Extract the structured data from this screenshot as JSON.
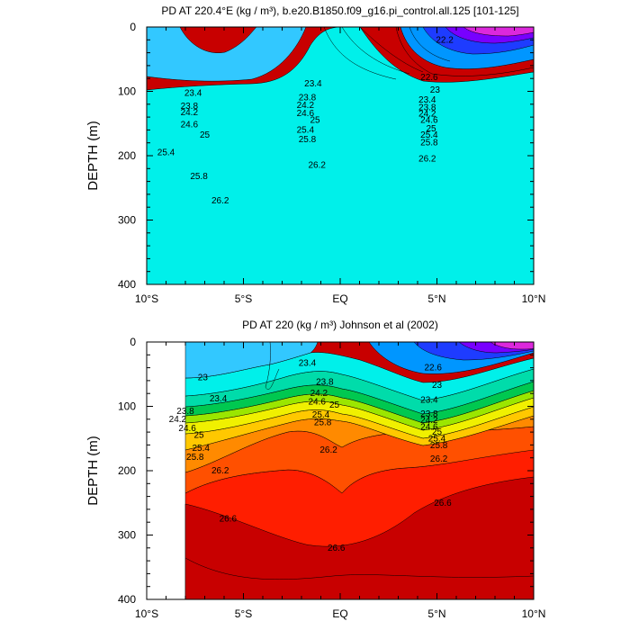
{
  "chart_data": [
    {
      "type": "heatmap",
      "title": "PD AT 220.4°E (kg / m³), b.e20.B1850.f09_g16.pi_control.all.125 [101-125]",
      "xlabel": "",
      "ylabel": "DEPTH (m)",
      "xlim": [
        -10,
        10
      ],
      "ylim": [
        400,
        0
      ],
      "x_ticks": [
        -10,
        -5,
        0,
        5,
        10
      ],
      "x_tick_labels": [
        "10°S",
        "5°S",
        "EQ",
        "5°N",
        "10°N"
      ],
      "y_ticks": [
        0,
        100,
        200,
        300,
        400
      ],
      "y_tick_labels": [
        "0",
        "100",
        "200",
        "300",
        "400"
      ],
      "x_data_range": [
        -10,
        10
      ],
      "contour_levels": [
        22.2,
        22.6,
        23,
        23.4,
        23.8,
        24.2,
        24.6,
        25,
        25.4,
        25.8,
        26.2
      ],
      "contour_labels": [
        {
          "text": "23.4",
          "x": -7.6,
          "y": 103
        },
        {
          "text": "23.8",
          "x": -7.8,
          "y": 123
        },
        {
          "text": "24.2",
          "x": -7.8,
          "y": 133
        },
        {
          "text": "24.6",
          "x": -7.8,
          "y": 152
        },
        {
          "text": "25",
          "x": -7.0,
          "y": 168
        },
        {
          "text": "25.4",
          "x": -9.0,
          "y": 195
        },
        {
          "text": "25.8",
          "x": -7.3,
          "y": 232
        },
        {
          "text": "26.2",
          "x": -6.2,
          "y": 270
        },
        {
          "text": "23.4",
          "x": -1.4,
          "y": 88
        },
        {
          "text": "23.8",
          "x": -1.7,
          "y": 110
        },
        {
          "text": "24.2",
          "x": -1.8,
          "y": 122
        },
        {
          "text": "24.6",
          "x": -1.8,
          "y": 134
        },
        {
          "text": "25",
          "x": -1.3,
          "y": 145
        },
        {
          "text": "25.4",
          "x": -1.8,
          "y": 160
        },
        {
          "text": "25.8",
          "x": -1.7,
          "y": 175
        },
        {
          "text": "26.2",
          "x": -1.2,
          "y": 215
        },
        {
          "text": "22.2",
          "x": 5.4,
          "y": 20
        },
        {
          "text": "22.6",
          "x": 4.6,
          "y": 78
        },
        {
          "text": "23",
          "x": 4.9,
          "y": 98
        },
        {
          "text": "23.4",
          "x": 4.5,
          "y": 113
        },
        {
          "text": "23.8",
          "x": 4.5,
          "y": 125
        },
        {
          "text": "24.2",
          "x": 4.5,
          "y": 135
        },
        {
          "text": "24.6",
          "x": 4.6,
          "y": 145
        },
        {
          "text": "25",
          "x": 4.7,
          "y": 158
        },
        {
          "text": "25.4",
          "x": 4.6,
          "y": 168
        },
        {
          "text": "25.8",
          "x": 4.6,
          "y": 180
        },
        {
          "text": "26.2",
          "x": 4.5,
          "y": 205
        }
      ]
    },
    {
      "type": "heatmap",
      "title": "PD AT 220 (kg / m³) Johnson et al (2002)",
      "xlabel": "",
      "ylabel": "DEPTH (m)",
      "xlim": [
        -10,
        10
      ],
      "ylim": [
        400,
        0
      ],
      "x_ticks": [
        -10,
        -5,
        0,
        5,
        10
      ],
      "x_tick_labels": [
        "10°S",
        "5°S",
        "EQ",
        "5°N",
        "10°N"
      ],
      "y_ticks": [
        0,
        100,
        200,
        300,
        400
      ],
      "y_tick_labels": [
        "0",
        "100",
        "200",
        "300",
        "400"
      ],
      "x_data_range": [
        -8,
        10
      ],
      "contour_levels": [
        22.2,
        22.6,
        23,
        23.4,
        23.8,
        24.2,
        24.6,
        25,
        25.4,
        25.8,
        26.2,
        26.6
      ],
      "contour_labels": [
        {
          "text": "23",
          "x": -7.1,
          "y": 55
        },
        {
          "text": "23.4",
          "x": -6.3,
          "y": 88
        },
        {
          "text": "23.8",
          "x": -8.0,
          "y": 108
        },
        {
          "text": "24.2",
          "x": -8.4,
          "y": 120
        },
        {
          "text": "24.6",
          "x": -7.9,
          "y": 134
        },
        {
          "text": "25",
          "x": -7.3,
          "y": 145
        },
        {
          "text": "25.4",
          "x": -7.2,
          "y": 165
        },
        {
          "text": "25.8",
          "x": -7.5,
          "y": 179
        },
        {
          "text": "26.2",
          "x": -6.2,
          "y": 200
        },
        {
          "text": "26.6",
          "x": -5.8,
          "y": 275
        },
        {
          "text": "23.4",
          "x": -1.7,
          "y": 33
        },
        {
          "text": "23.8",
          "x": -0.8,
          "y": 62
        },
        {
          "text": "24.2",
          "x": -1.1,
          "y": 80
        },
        {
          "text": "24.6",
          "x": -1.2,
          "y": 93
        },
        {
          "text": "25",
          "x": -0.3,
          "y": 98
        },
        {
          "text": "25.4",
          "x": -1.0,
          "y": 113
        },
        {
          "text": "25.8",
          "x": -0.9,
          "y": 125
        },
        {
          "text": "26.2",
          "x": -0.6,
          "y": 168
        },
        {
          "text": "26.6",
          "x": -0.2,
          "y": 320
        },
        {
          "text": "22.6",
          "x": 4.8,
          "y": 40
        },
        {
          "text": "23",
          "x": 5.0,
          "y": 67
        },
        {
          "text": "23.4",
          "x": 4.6,
          "y": 90
        },
        {
          "text": "23.8",
          "x": 4.6,
          "y": 112
        },
        {
          "text": "24.2",
          "x": 4.6,
          "y": 122
        },
        {
          "text": "24.6",
          "x": 4.6,
          "y": 132
        },
        {
          "text": "25",
          "x": 5.0,
          "y": 140
        },
        {
          "text": "25.4",
          "x": 5.0,
          "y": 150
        },
        {
          "text": "25.8",
          "x": 5.1,
          "y": 161
        },
        {
          "text": "26.2",
          "x": 5.1,
          "y": 182
        },
        {
          "text": "26.6",
          "x": 5.3,
          "y": 250
        }
      ]
    }
  ]
}
